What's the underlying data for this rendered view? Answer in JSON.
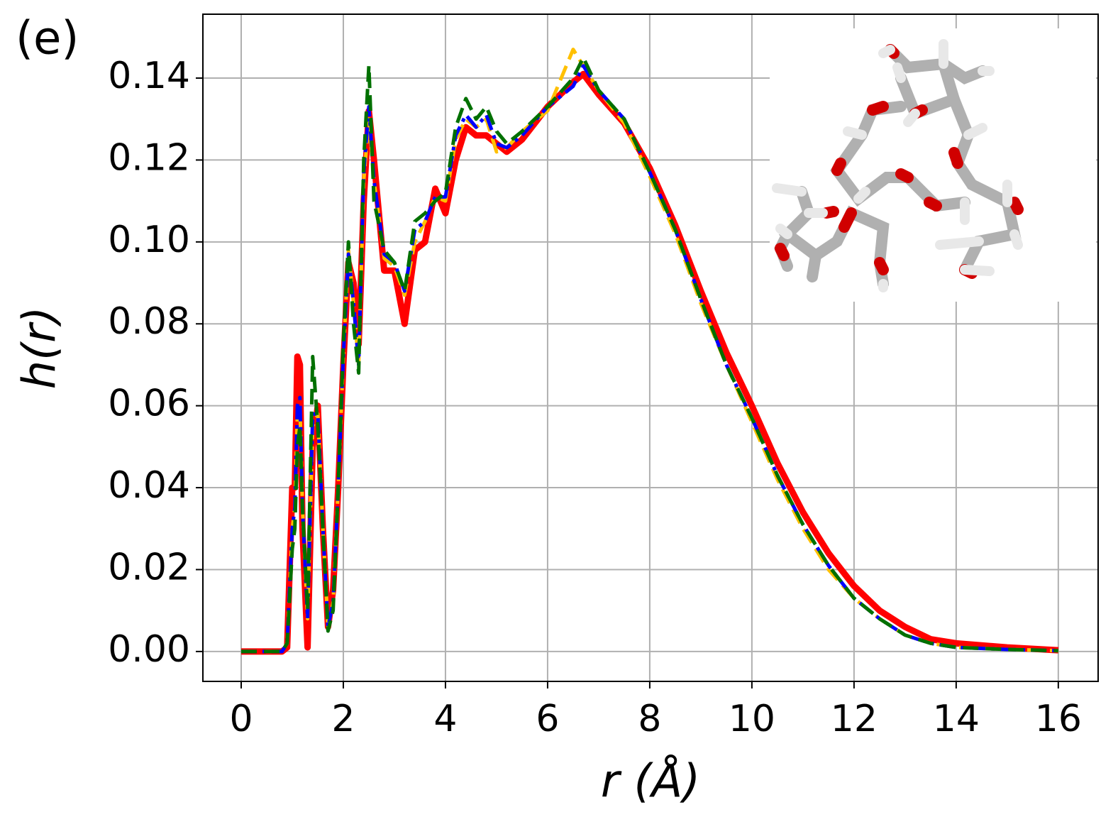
{
  "chart_data": {
    "type": "line",
    "panel_label": "(e)",
    "xlabel": "r (Å)",
    "ylabel": "h(r)",
    "x": [
      0,
      0.5,
      0.8,
      0.9,
      1.0,
      1.05,
      1.1,
      1.15,
      1.2,
      1.3,
      1.4,
      1.5,
      1.6,
      1.7,
      1.8,
      1.9,
      2.0,
      2.1,
      2.2,
      2.3,
      2.4,
      2.5,
      2.6,
      2.8,
      3.0,
      3.2,
      3.4,
      3.6,
      3.8,
      4.0,
      4.2,
      4.4,
      4.6,
      4.8,
      5.0,
      5.2,
      5.5,
      6.0,
      6.5,
      6.7,
      7.0,
      7.5,
      8.0,
      8.5,
      9.0,
      9.5,
      10.0,
      10.5,
      11.0,
      11.5,
      12.0,
      12.5,
      13.0,
      13.5,
      14.0,
      15.0,
      16.0
    ],
    "series": [
      {
        "color": "#ff0000",
        "linestyle": "solid",
        "values": [
          0,
          0,
          0,
          0.001,
          0.04,
          0.04,
          0.072,
          0.07,
          0.03,
          0.001,
          0.05,
          0.06,
          0.03,
          0.006,
          0.015,
          0.04,
          0.07,
          0.095,
          0.09,
          0.075,
          0.11,
          0.132,
          0.12,
          0.093,
          0.093,
          0.08,
          0.098,
          0.1,
          0.113,
          0.107,
          0.12,
          0.128,
          0.126,
          0.126,
          0.124,
          0.122,
          0.125,
          0.133,
          0.139,
          0.141,
          0.136,
          0.129,
          0.118,
          0.104,
          0.088,
          0.073,
          0.06,
          0.046,
          0.034,
          0.024,
          0.016,
          0.01,
          0.006,
          0.003,
          0.002,
          0.001,
          0.0003
        ]
      },
      {
        "color": "#ffc000",
        "linestyle": "dashed",
        "values": [
          0,
          0,
          0,
          0.002,
          0.03,
          0.035,
          0.058,
          0.06,
          0.035,
          0.008,
          0.055,
          0.058,
          0.03,
          0.006,
          0.012,
          0.04,
          0.072,
          0.098,
          0.085,
          0.07,
          0.115,
          0.13,
          0.115,
          0.096,
          0.094,
          0.087,
          0.1,
          0.105,
          0.111,
          0.11,
          0.125,
          0.13,
          0.128,
          0.13,
          0.122,
          0.123,
          0.127,
          0.132,
          0.147,
          0.143,
          0.137,
          0.129,
          0.116,
          0.102,
          0.085,
          0.07,
          0.056,
          0.042,
          0.03,
          0.02,
          0.013,
          0.008,
          0.004,
          0.002,
          0.001,
          0.0005,
          0.0002
        ]
      },
      {
        "color": "#0000ff",
        "linestyle": "dashdot",
        "values": [
          0,
          0,
          0,
          0.002,
          0.03,
          0.035,
          0.06,
          0.062,
          0.035,
          0.008,
          0.058,
          0.058,
          0.03,
          0.006,
          0.012,
          0.04,
          0.072,
          0.097,
          0.085,
          0.07,
          0.117,
          0.133,
          0.115,
          0.097,
          0.095,
          0.088,
          0.103,
          0.105,
          0.111,
          0.111,
          0.126,
          0.131,
          0.128,
          0.131,
          0.124,
          0.123,
          0.126,
          0.133,
          0.138,
          0.143,
          0.137,
          0.13,
          0.117,
          0.103,
          0.086,
          0.07,
          0.057,
          0.043,
          0.031,
          0.021,
          0.013,
          0.008,
          0.004,
          0.002,
          0.001,
          0.0005,
          0.0002
        ]
      },
      {
        "color": "#007000",
        "linestyle": "dashed",
        "values": [
          0,
          0,
          0,
          0.002,
          0.025,
          0.03,
          0.05,
          0.055,
          0.035,
          0.01,
          0.072,
          0.055,
          0.03,
          0.005,
          0.01,
          0.04,
          0.075,
          0.1,
          0.08,
          0.068,
          0.12,
          0.143,
          0.11,
          0.098,
          0.095,
          0.088,
          0.105,
          0.107,
          0.11,
          0.112,
          0.128,
          0.135,
          0.13,
          0.133,
          0.127,
          0.124,
          0.127,
          0.133,
          0.14,
          0.145,
          0.137,
          0.13,
          0.117,
          0.103,
          0.086,
          0.07,
          0.057,
          0.043,
          0.031,
          0.021,
          0.013,
          0.008,
          0.004,
          0.002,
          0.001,
          0.0005,
          0.0002
        ]
      }
    ],
    "xlim": [
      -0.75,
      16.78
    ],
    "ylim": [
      -0.0073,
      0.1556
    ],
    "xticks": [
      0,
      2,
      4,
      6,
      8,
      10,
      12,
      14,
      16
    ],
    "yticks": [
      {
        "value": 0,
        "label": "0.00"
      },
      {
        "value": 0.02,
        "label": "0.02"
      },
      {
        "value": 0.04,
        "label": "0.04"
      },
      {
        "value": 0.06,
        "label": "0.06"
      },
      {
        "value": 0.08,
        "label": "0.08"
      },
      {
        "value": 0.1,
        "label": "0.10"
      },
      {
        "value": 0.12,
        "label": "0.12"
      },
      {
        "value": 0.14,
        "label": "0.14"
      }
    ],
    "grid": true
  }
}
